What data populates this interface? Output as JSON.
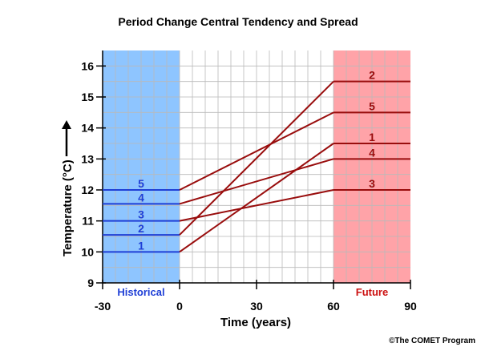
{
  "chart_data": {
    "type": "line",
    "title": "Period Change Central Tendency and Spread",
    "xlabel": "Time (years)",
    "ylabel": "Temperature (°C)",
    "xlim": [
      -30,
      90
    ],
    "ylim": [
      9,
      16.5
    ],
    "x_ticks": [
      -30,
      0,
      30,
      60,
      90
    ],
    "y_ticks": [
      9,
      10,
      11,
      12,
      13,
      14,
      15,
      16
    ],
    "grid": true,
    "regions": [
      {
        "label": "Historical",
        "x_start": -30,
        "x_end": 0,
        "color": "#8ec5ff",
        "label_color": "#1f3fd6"
      },
      {
        "label": "Future",
        "x_start": 60,
        "x_end": 90,
        "color": "#ffa3a8",
        "label_color": "#cc1111"
      }
    ],
    "historical_color": "#1f3fd6",
    "future_color": "#990d0d",
    "series": [
      {
        "name": "1",
        "historical": 10.0,
        "future": 13.5
      },
      {
        "name": "2",
        "historical": 10.55,
        "future": 15.5
      },
      {
        "name": "3",
        "historical": 11.0,
        "future": 12.0
      },
      {
        "name": "4",
        "historical": 11.55,
        "future": 13.0
      },
      {
        "name": "5",
        "historical": 12.0,
        "future": 14.5
      }
    ]
  },
  "credit": "©The COMET Program"
}
